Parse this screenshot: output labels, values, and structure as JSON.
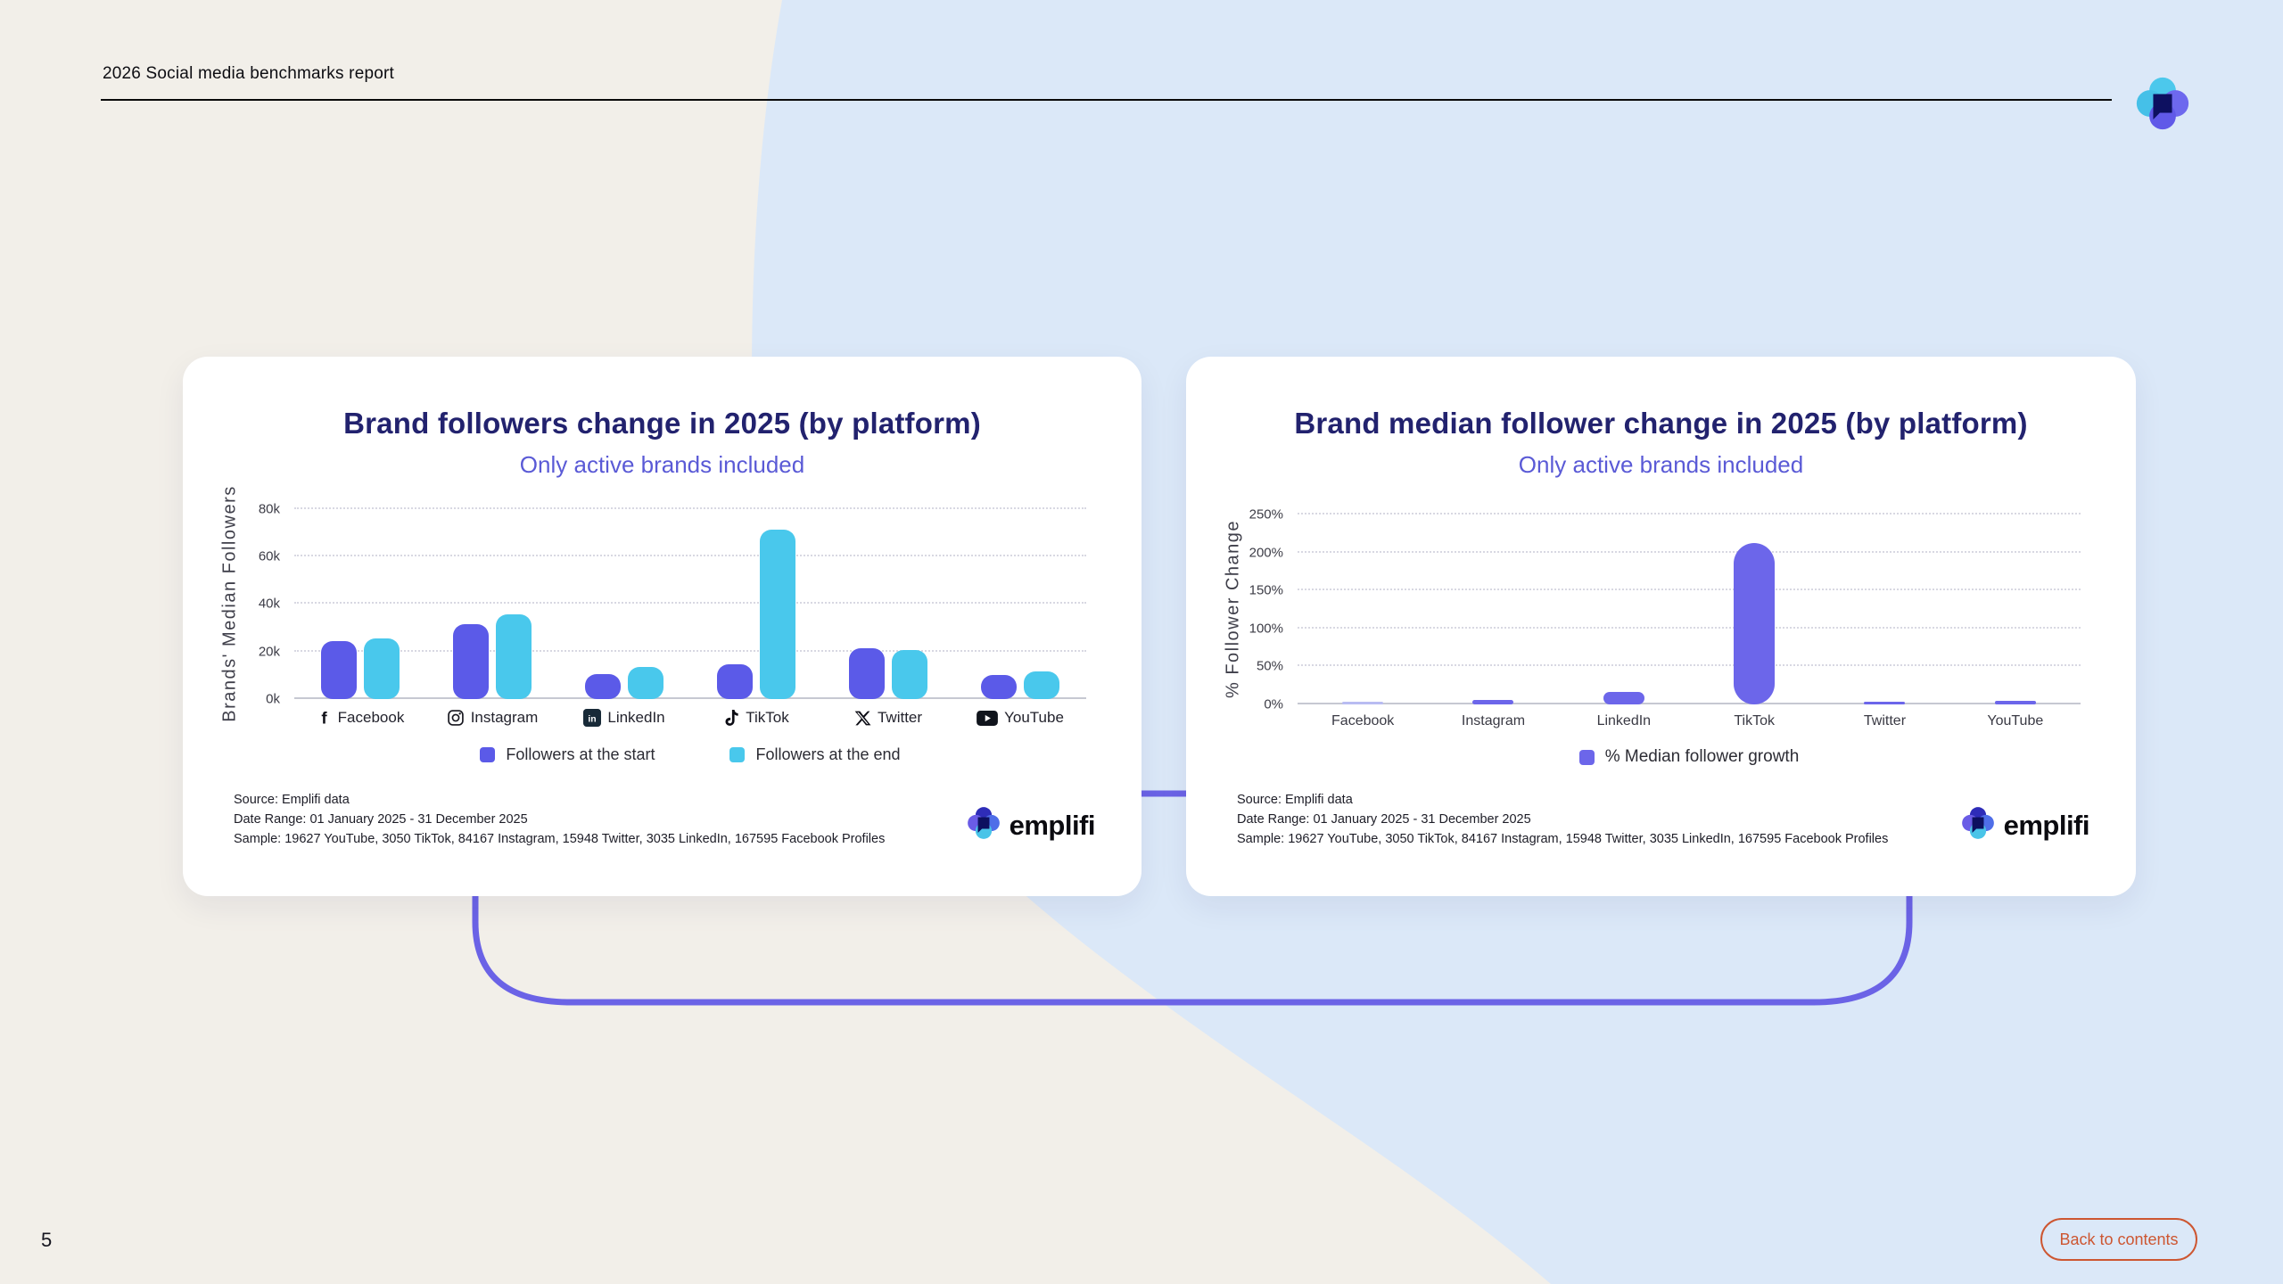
{
  "header": {
    "title": "2026 Social media benchmarks report"
  },
  "page_number": "5",
  "back_button": {
    "label": "Back to contents"
  },
  "brand": {
    "name": "emplifi"
  },
  "colors": {
    "background_cream": "#f2efe9",
    "background_blue": "#dbe8f8",
    "card_white": "#ffffff",
    "title_navy": "#22226e",
    "subtitle_purple": "#5a5ad6",
    "bar_start_purple": "#5b5ae8",
    "bar_end_cyan": "#49c8ec",
    "growth_purple": "#6c66ea",
    "growth_light_purple": "#b9bcf2",
    "bracket_purple": "#6b63e6",
    "button_orange": "#cd5631"
  },
  "left_card": {
    "title": "Brand followers change in 2025 (by platform)",
    "subtitle": "Only active brands included",
    "chart_data": {
      "type": "bar",
      "categories": [
        "Facebook",
        "Instagram",
        "LinkedIn",
        "TikTok",
        "Twitter",
        "YouTube"
      ],
      "category_icons": [
        "facebook-icon",
        "instagram-icon",
        "linkedin-icon",
        "tiktok-icon",
        "twitter-x-icon",
        "youtube-icon"
      ],
      "series": [
        {
          "name": "Followers at the start",
          "color": "#5b5ae8",
          "values": [
            24.5,
            31.5,
            10.5,
            14.5,
            21.5,
            10
          ]
        },
        {
          "name": "Followers at the end",
          "color": "#49c8ec",
          "values": [
            25.5,
            35.5,
            13.5,
            71.5,
            20.5,
            11.5
          ]
        }
      ],
      "ylabel": "Brands' Median Followers",
      "yticks": [
        "0k",
        "20k",
        "40k",
        "60k",
        "80k"
      ],
      "ymax": 80,
      "unit": "thousands of followers",
      "grid": "horizontal dotted",
      "legend_position": "bottom"
    },
    "source_lines": [
      "Source:  Emplifi data",
      "Date Range:  01 January 2025 - 31 December 2025",
      "Sample:  19627 YouTube, 3050 TikTok, 84167 Instagram, 15948 Twitter, 3035 LinkedIn, 167595 Facebook Profiles"
    ],
    "logo_text": "emplifi"
  },
  "right_card": {
    "title": "Brand median follower change in 2025 (by platform)",
    "subtitle": "Only active brands included",
    "chart_data": {
      "type": "bar",
      "categories": [
        "Facebook",
        "Instagram",
        "LinkedIn",
        "TikTok",
        "Twitter",
        "YouTube"
      ],
      "series": [
        {
          "name": "% Median follower growth",
          "color": "#6c66ea",
          "values": [
            3,
            6,
            16,
            213,
            3,
            5
          ],
          "bar_colors": [
            "#b9bcf2",
            null,
            null,
            null,
            null,
            null
          ]
        }
      ],
      "ylabel": "% Follower Change",
      "yticks": [
        "0%",
        "50%",
        "100%",
        "150%",
        "200%",
        "250%"
      ],
      "ymax": 250,
      "unit": "percent",
      "grid": "horizontal dotted",
      "legend_position": "bottom"
    },
    "source_lines": [
      "Source:  Emplifi data",
      "Date Range:  01 January 2025 - 31 December 2025",
      "Sample:  19627 YouTube, 3050 TikTok, 84167 Instagram, 15948 Twitter, 3035 LinkedIn, 167595 Facebook Profiles"
    ],
    "logo_text": "emplifi"
  }
}
